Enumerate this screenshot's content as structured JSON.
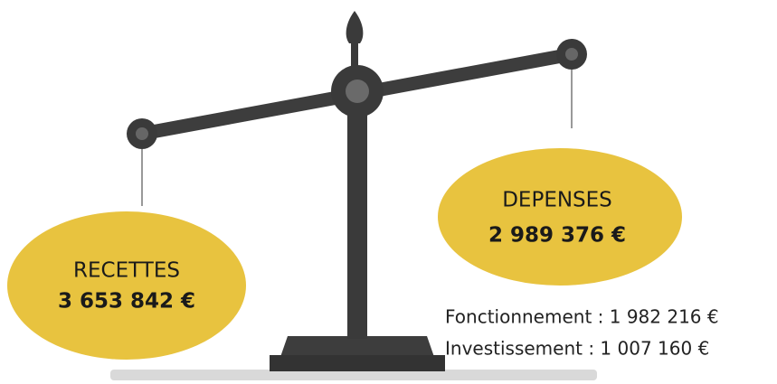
{
  "recettes": {
    "label": "RECETTES",
    "amount": "3 653 842 €"
  },
  "depenses": {
    "label": "DEPENSES",
    "amount": "2 989 376 €"
  },
  "details": [
    "Fonctionnement : 1 982 216 €",
    "Investissement : 1 007 160 €"
  ]
}
